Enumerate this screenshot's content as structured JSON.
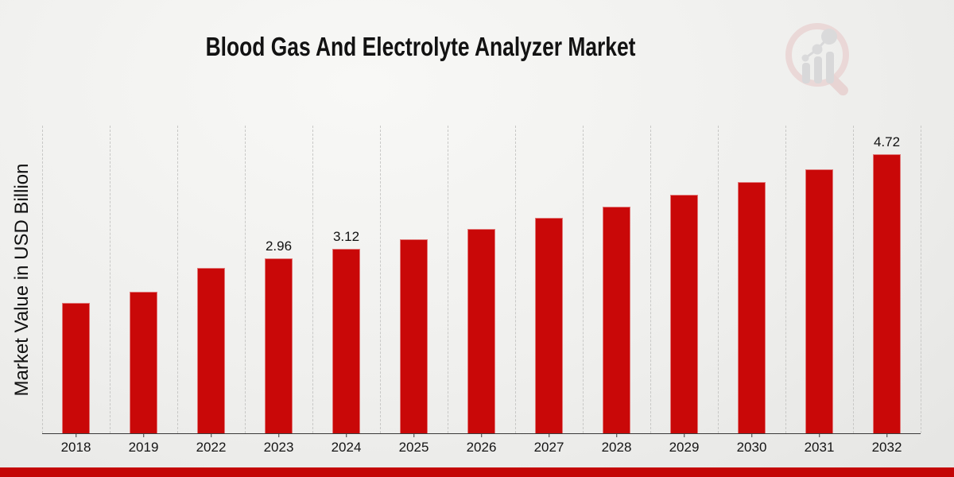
{
  "header": {
    "title": "Blood Gas And Electrolyte Analyzer Market"
  },
  "y_axis": {
    "label": "Market Value in USD Billion"
  },
  "branding": {
    "logo_name": "market-research-future-watermark"
  },
  "footer": {
    "banner_color": "#c40606"
  },
  "colors": {
    "bar": "#c90808",
    "grid": "#c8c8c6",
    "axis": "#3a3a3a",
    "text": "#121212"
  },
  "chart_data": {
    "type": "bar",
    "title": "Blood Gas And Electrolyte Analyzer Market",
    "xlabel": "",
    "ylabel": "Market Value in USD Billion",
    "categories": [
      "2018",
      "2019",
      "2022",
      "2023",
      "2024",
      "2025",
      "2026",
      "2027",
      "2028",
      "2029",
      "2030",
      "2031",
      "2032"
    ],
    "values": [
      2.2,
      2.39,
      2.79,
      2.96,
      3.12,
      3.28,
      3.46,
      3.64,
      3.83,
      4.03,
      4.24,
      4.46,
      4.72
    ],
    "data_labels": [
      "",
      "",
      "",
      "2.96",
      "3.12",
      "",
      "",
      "",
      "",
      "",
      "",
      "",
      "4.72"
    ],
    "labeled_points": [
      {
        "category": "2023",
        "label": "2.96"
      },
      {
        "category": "2024",
        "label": "3.12"
      },
      {
        "category": "2032",
        "label": "4.72"
      }
    ],
    "bar_color": "#c90808",
    "ylim": [
      0,
      5.2
    ],
    "grid": "vertical-dashed",
    "legend": "none"
  }
}
